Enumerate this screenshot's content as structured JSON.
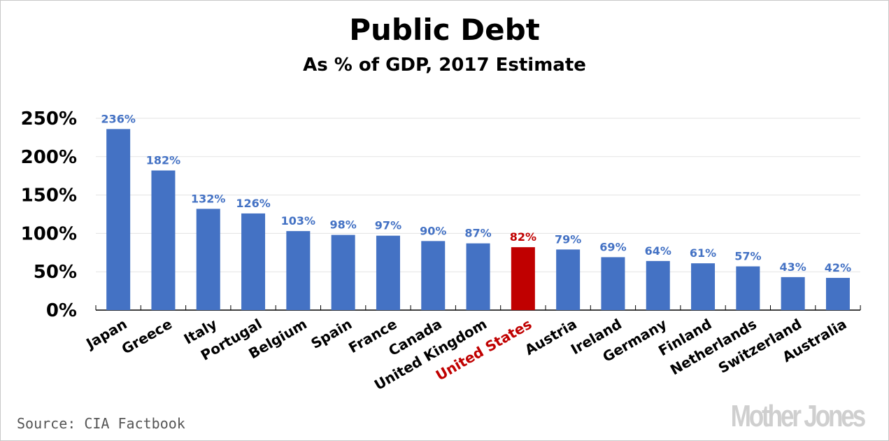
{
  "chart_data": {
    "type": "bar",
    "title": "Public Debt",
    "subtitle": "As % of GDP, 2017 Estimate",
    "xlabel": "",
    "ylabel": "",
    "ylim": [
      0,
      250
    ],
    "yticks": [
      "0%",
      "50%",
      "100%",
      "150%",
      "200%",
      "250%"
    ],
    "grid": true,
    "categories": [
      "Japan",
      "Greece",
      "Italy",
      "Portugal",
      "Belgium",
      "Spain",
      "France",
      "Canada",
      "United Kingdom",
      "United States",
      "Austria",
      "Ireland",
      "Germany",
      "Finland",
      "Netherlands",
      "Switzerland",
      "Australia"
    ],
    "values": [
      236,
      182,
      132,
      126,
      103,
      98,
      97,
      90,
      87,
      82,
      79,
      69,
      64,
      61,
      57,
      43,
      42
    ],
    "value_labels": [
      "236%",
      "182%",
      "132%",
      "126%",
      "103%",
      "98%",
      "97%",
      "90%",
      "87%",
      "82%",
      "79%",
      "69%",
      "64%",
      "61%",
      "57%",
      "43%",
      "42%"
    ],
    "highlight": "United States",
    "colors": {
      "bar": "#4472C4",
      "highlight": "#C00000",
      "grid": "#e3e3e3"
    }
  },
  "source": "Source: CIA Factbook",
  "logo": "Mother Jones"
}
